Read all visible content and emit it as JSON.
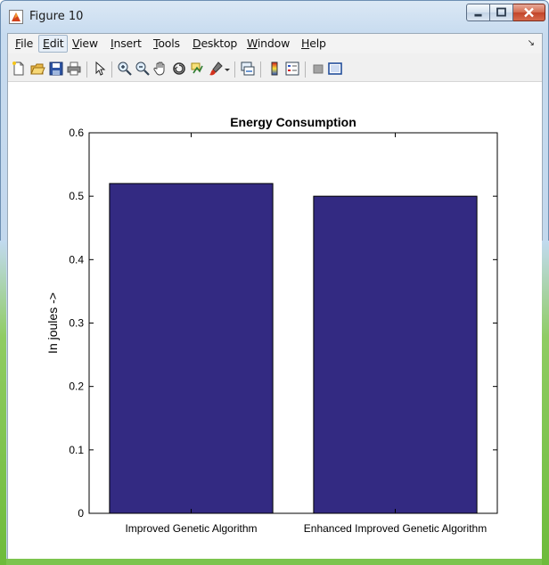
{
  "window": {
    "title": "Figure 10",
    "buttons": {
      "minimize": "minimize",
      "maximize": "maximize",
      "close": "close"
    }
  },
  "menu": {
    "items": [
      {
        "label": "File",
        "u": "F",
        "rest": "ile"
      },
      {
        "label": "Edit",
        "u": "E",
        "rest": "dit"
      },
      {
        "label": "View",
        "u": "V",
        "rest": "iew"
      },
      {
        "label": "Insert",
        "u": "I",
        "rest": "nsert"
      },
      {
        "label": "Tools",
        "u": "T",
        "rest": "ools"
      },
      {
        "label": "Desktop",
        "u": "D",
        "rest": "esktop"
      },
      {
        "label": "Window",
        "u": "W",
        "rest": "indow"
      },
      {
        "label": "Help",
        "u": "H",
        "rest": "elp"
      }
    ]
  },
  "toolbar": {
    "icons": [
      "new-figure-icon",
      "open-file-icon",
      "save-icon",
      "print-icon",
      "edit-plot-arrow-icon",
      "zoom-in-icon",
      "zoom-out-icon",
      "pan-hand-icon",
      "rotate-3d-icon",
      "data-cursor-icon",
      "brush-icon",
      "brush-dropdown-icon",
      "link-plot-icon",
      "insert-colorbar-icon",
      "insert-legend-icon",
      "hide-plot-tools-icon",
      "show-plot-tools-icon"
    ]
  },
  "chart_data": {
    "type": "bar",
    "title": "Energy Consumption",
    "ylabel": "In joules ->",
    "xlabel": "",
    "categories": [
      "Improved Genetic Algorithm",
      "Enhanced Improved Genetic Algorithm"
    ],
    "values": [
      0.52,
      0.5
    ],
    "ylim": [
      0,
      0.6
    ],
    "yticks": [
      "0",
      "0.1",
      "0.2",
      "0.3",
      "0.4",
      "0.5",
      "0.6"
    ],
    "bar_color": "#332a82",
    "grid": false
  }
}
